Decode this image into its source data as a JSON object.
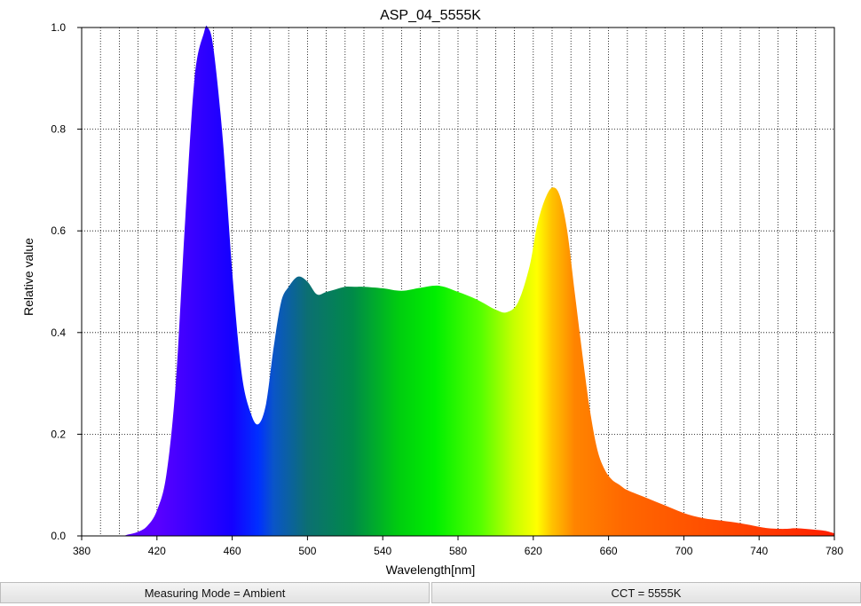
{
  "chart_data": {
    "type": "area",
    "title": "ASP_04_5555K",
    "xlabel": "Wavelength[nm]",
    "ylabel": "Relative value",
    "xlim": [
      380,
      780
    ],
    "ylim": [
      0,
      1.0
    ],
    "x_ticks": [
      "380",
      "420",
      "460",
      "500",
      "540",
      "580",
      "620",
      "660",
      "700",
      "740",
      "780"
    ],
    "y_ticks": [
      "0.0",
      "0.2",
      "0.4",
      "0.6",
      "0.8",
      "1.0"
    ],
    "grid": true,
    "series": [
      {
        "x": [
          380,
          400,
          405,
          410,
          415,
          420,
          425,
          430,
          435,
          440,
          445,
          447,
          450,
          455,
          460,
          465,
          470,
          474,
          478,
          482,
          486,
          490,
          495,
          500,
          505,
          510,
          515,
          520,
          525,
          530,
          540,
          550,
          560,
          570,
          580,
          590,
          600,
          606,
          612,
          618,
          622,
          626,
          630,
          634,
          638,
          642,
          646,
          650,
          654,
          658,
          662,
          666,
          670,
          680,
          690,
          700,
          710,
          720,
          730,
          740,
          745,
          750,
          755,
          760,
          770,
          775,
          780
        ],
        "values": [
          0,
          0,
          0.003,
          0.008,
          0.02,
          0.05,
          0.12,
          0.3,
          0.62,
          0.9,
          0.99,
          1.0,
          0.96,
          0.78,
          0.52,
          0.32,
          0.24,
          0.22,
          0.26,
          0.37,
          0.46,
          0.49,
          0.51,
          0.5,
          0.475,
          0.48,
          0.485,
          0.49,
          0.49,
          0.49,
          0.487,
          0.482,
          0.488,
          0.492,
          0.48,
          0.465,
          0.445,
          0.44,
          0.46,
          0.53,
          0.61,
          0.66,
          0.685,
          0.67,
          0.6,
          0.48,
          0.36,
          0.25,
          0.17,
          0.13,
          0.11,
          0.1,
          0.09,
          0.075,
          0.06,
          0.045,
          0.035,
          0.03,
          0.025,
          0.018,
          0.015,
          0.014,
          0.014,
          0.015,
          0.012,
          0.01,
          0.005
        ]
      }
    ]
  },
  "status": {
    "measuring_mode": "Measuring Mode = Ambient",
    "cct": "CCT = 5555K"
  }
}
